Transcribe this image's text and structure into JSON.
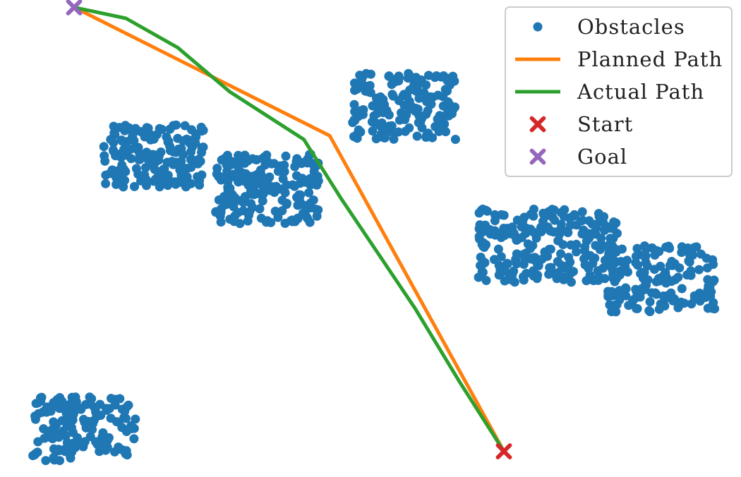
{
  "chart_data": {
    "type": "scatter",
    "title": "",
    "xlabel": "",
    "ylabel": "",
    "axes_visible": false,
    "grid": false,
    "xlim": [
      0,
      10
    ],
    "ylim": [
      0,
      6.5
    ],
    "legend": {
      "placement": "top-right",
      "entries": [
        {
          "key": "obstacles",
          "label": "Obstacles",
          "marker": "dot"
        },
        {
          "key": "planned",
          "label": "Planned Path",
          "marker": "line"
        },
        {
          "key": "actual",
          "label": "Actual Path",
          "marker": "line"
        },
        {
          "key": "start",
          "label": "Start",
          "marker": "x"
        },
        {
          "key": "goal",
          "label": "Goal",
          "marker": "x"
        }
      ]
    },
    "colors": {
      "obstacles": "#1f77b4",
      "planned": "#ff7f0e",
      "actual": "#2ca02c",
      "start": "#d62728",
      "goal": "#9467bd"
    },
    "obstacle_clusters": [
      {
        "xmin": 0.44,
        "xmax": 1.83,
        "ymin": 0.22,
        "ymax": 1.1,
        "count": 150
      },
      {
        "xmin": 1.4,
        "xmax": 2.75,
        "ymin": 3.95,
        "ymax": 4.8,
        "count": 170
      },
      {
        "xmin": 2.9,
        "xmax": 4.3,
        "ymin": 3.45,
        "ymax": 4.4,
        "count": 190
      },
      {
        "xmin": 4.75,
        "xmax": 6.15,
        "ymin": 4.6,
        "ymax": 5.5,
        "count": 170
      },
      {
        "xmin": 6.45,
        "xmax": 8.35,
        "ymin": 2.65,
        "ymax": 3.65,
        "count": 230
      },
      {
        "xmin": 8.2,
        "xmax": 9.65,
        "ymin": 2.25,
        "ymax": 3.15,
        "count": 160
      }
    ],
    "series": [
      {
        "name": "Planned Path",
        "x": [
          6.8,
          4.45,
          1.0
        ],
        "y": [
          0.35,
          4.65,
          6.4
        ]
      },
      {
        "name": "Actual Path",
        "x": [
          6.8,
          6.2,
          5.6,
          5.2,
          4.6,
          4.1,
          3.1,
          2.4,
          1.7,
          1.0
        ],
        "y": [
          0.35,
          1.3,
          2.3,
          2.9,
          3.8,
          4.6,
          5.25,
          5.85,
          6.25,
          6.4
        ]
      }
    ],
    "start": {
      "x": 6.8,
      "y": 0.35
    },
    "goal": {
      "x": 1.0,
      "y": 6.4
    }
  }
}
